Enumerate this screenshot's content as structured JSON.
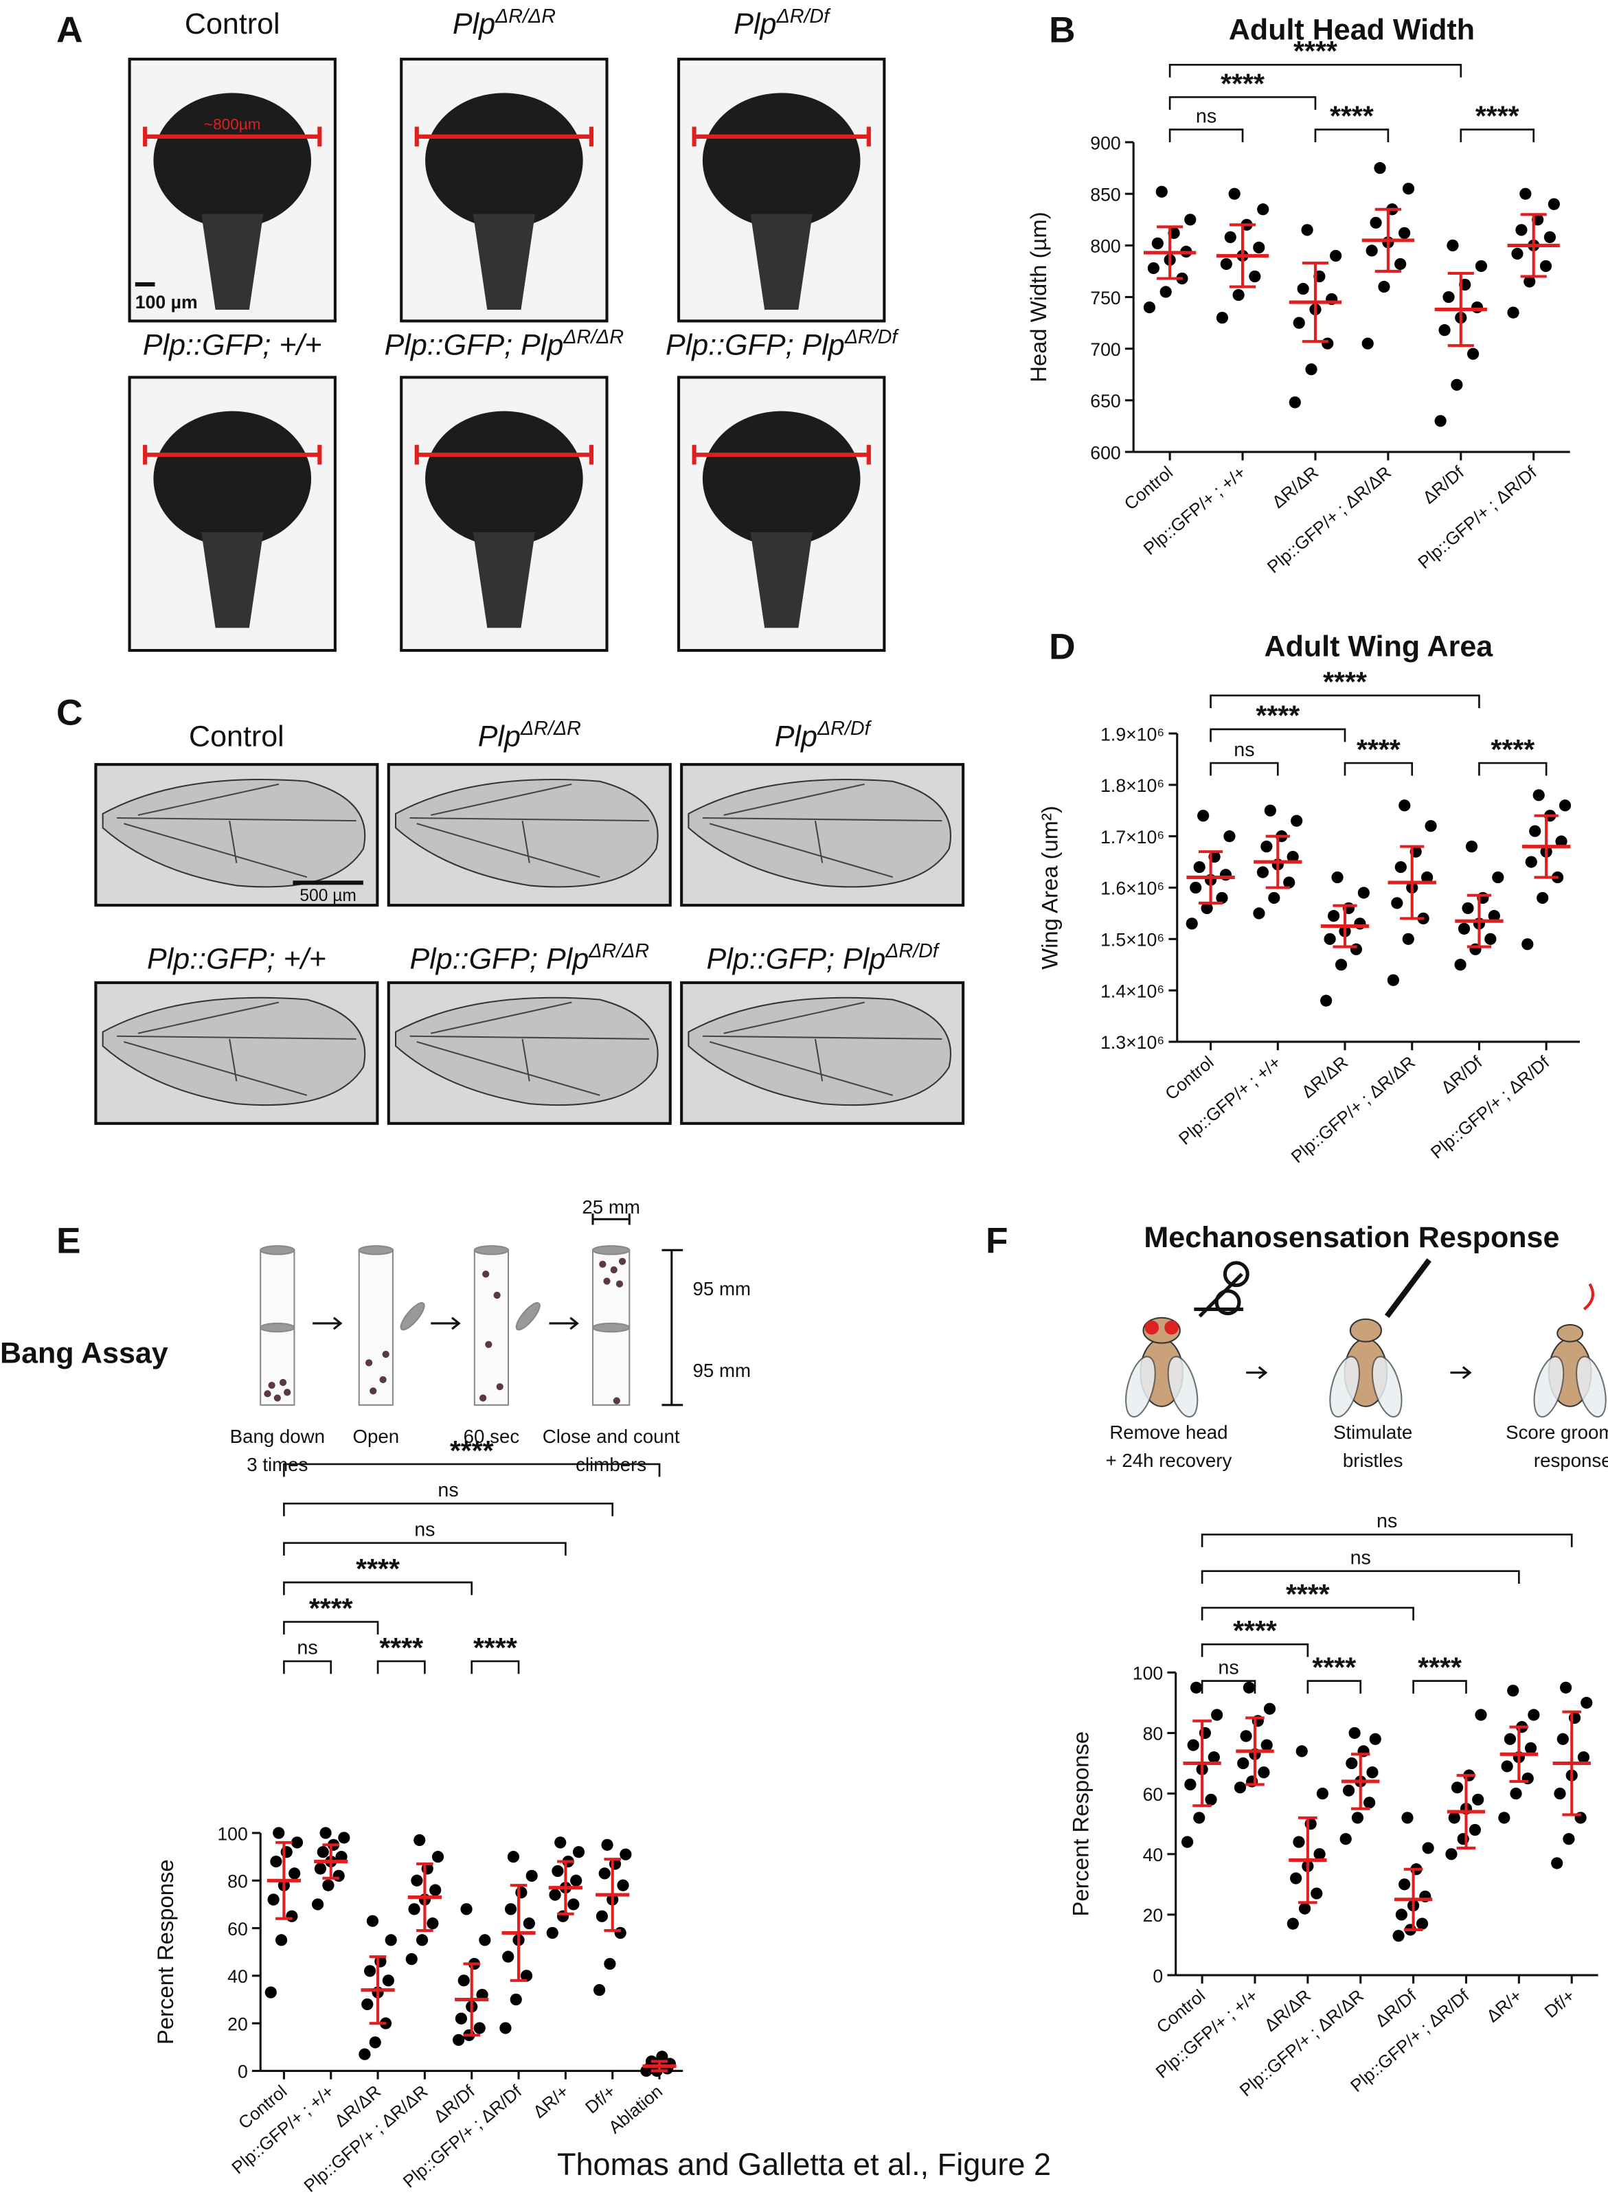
{
  "panel_a": {
    "label": "A",
    "captions": [
      {
        "text": "Control"
      },
      {
        "text": "Plp",
        "sup": "ΔR/ΔR"
      },
      {
        "text": "Plp",
        "sup": "ΔR/Df"
      },
      {
        "text": "Plp::GFP; +/+"
      },
      {
        "text": "Plp::GFP; Plp",
        "sup": "ΔR/ΔR"
      },
      {
        "text": "Plp::GFP; Plp",
        "sup": "ΔR/Df"
      }
    ],
    "measure_label": "~800µm",
    "scale_bar": "100 µm"
  },
  "panel_c": {
    "label": "C",
    "captions": [
      {
        "text": "Control"
      },
      {
        "text": "Plp",
        "sup": "ΔR/ΔR"
      },
      {
        "text": "Plp",
        "sup": "ΔR/Df"
      },
      {
        "text": "Plp::GFP; +/+"
      },
      {
        "text": "Plp::GFP; Plp",
        "sup": "ΔR/ΔR"
      },
      {
        "text": "Plp::GFP; Plp",
        "sup": "ΔR/Df"
      }
    ],
    "scale_bar": "500 µm"
  },
  "panel_e": {
    "label": "E",
    "title": "Bang Assay",
    "steps": [
      [
        "Bang down",
        "3 times"
      ],
      [
        "Open"
      ],
      [
        "60 sec"
      ],
      [
        "Close and count",
        "climbers"
      ]
    ],
    "width_label": "25 mm",
    "height_labels": [
      "95 mm",
      "95 mm"
    ]
  },
  "panel_f": {
    "label": "F",
    "title": "Mechanosensation Response",
    "steps": [
      [
        "Remove head",
        "+ 24h recovery"
      ],
      [
        "Stimulate",
        "bristles"
      ],
      [
        "Score grooming",
        "response"
      ]
    ]
  },
  "chart_data": [
    {
      "type": "dot",
      "panel_label": "B",
      "title": "Adult Head Width",
      "ylabel": "Head Width (µm)",
      "color": "#000000",
      "summary_color": "#e02020",
      "categories": [
        "Control",
        "Plp::GFP/+ ; +/+",
        "ΔR/ΔR",
        "Plp::GFP/+ ; ΔR/ΔR",
        "ΔR/Df",
        "Plp::GFP/+ ; ΔR/Df"
      ],
      "ylim": [
        600,
        900
      ],
      "yticks": [
        600,
        650,
        700,
        750,
        800,
        850,
        900
      ],
      "groups": [
        {
          "mean": 793,
          "sd": 25,
          "points": [
            740,
            755,
            768,
            778,
            786,
            794,
            802,
            812,
            825,
            852
          ]
        },
        {
          "mean": 790,
          "sd": 30,
          "points": [
            730,
            752,
            770,
            782,
            790,
            798,
            808,
            820,
            835,
            850
          ]
        },
        {
          "mean": 745,
          "sd": 38,
          "points": [
            648,
            680,
            705,
            725,
            738,
            748,
            758,
            770,
            790,
            815
          ]
        },
        {
          "mean": 805,
          "sd": 30,
          "points": [
            705,
            760,
            782,
            795,
            803,
            812,
            822,
            835,
            855,
            875
          ]
        },
        {
          "mean": 738,
          "sd": 35,
          "points": [
            630,
            665,
            695,
            718,
            730,
            740,
            750,
            762,
            780,
            800
          ]
        },
        {
          "mean": 800,
          "sd": 30,
          "points": [
            735,
            765,
            780,
            792,
            800,
            808,
            815,
            825,
            840,
            850
          ]
        }
      ],
      "comparisons": [
        {
          "from": 0,
          "to": 1,
          "label": "ns"
        },
        {
          "from": 2,
          "to": 3,
          "label": "****"
        },
        {
          "from": 4,
          "to": 5,
          "label": "****"
        },
        {
          "from": 0,
          "to": 2,
          "label": "****"
        },
        {
          "from": 0,
          "to": 4,
          "label": "****"
        }
      ]
    },
    {
      "type": "dot",
      "panel_label": "D",
      "title": "Adult Wing Area",
      "ylabel": "Wing Area (um²)",
      "color": "#000000",
      "summary_color": "#e02020",
      "categories": [
        "Control",
        "Plp::GFP/+ ; +/+",
        "ΔR/ΔR",
        "Plp::GFP/+ ; ΔR/ΔR",
        "ΔR/Df",
        "Plp::GFP/+ ; ΔR/Df"
      ],
      "ylim": [
        1300000,
        1900000
      ],
      "yticks": [
        {
          "value": 1300000,
          "label": "1.3×10⁶"
        },
        {
          "value": 1400000,
          "label": "1.4×10⁶"
        },
        {
          "value": 1500000,
          "label": "1.5×10⁶"
        },
        {
          "value": 1600000,
          "label": "1.6×10⁶"
        },
        {
          "value": 1700000,
          "label": "1.7×10⁶"
        },
        {
          "value": 1800000,
          "label": "1.8×10⁶"
        },
        {
          "value": 1900000,
          "label": "1.9×10⁶"
        }
      ],
      "groups": [
        {
          "mean": 1620000,
          "sd": 50000,
          "points": [
            1530000,
            1560000,
            1580000,
            1600000,
            1615000,
            1625000,
            1640000,
            1660000,
            1700000,
            1740000
          ]
        },
        {
          "mean": 1650000,
          "sd": 50000,
          "points": [
            1550000,
            1580000,
            1610000,
            1630000,
            1645000,
            1660000,
            1680000,
            1700000,
            1730000,
            1750000
          ]
        },
        {
          "mean": 1525000,
          "sd": 40000,
          "points": [
            1380000,
            1450000,
            1480000,
            1500000,
            1515000,
            1530000,
            1545000,
            1560000,
            1590000,
            1620000
          ]
        },
        {
          "mean": 1610000,
          "sd": 70000,
          "points": [
            1420000,
            1500000,
            1540000,
            1570000,
            1600000,
            1620000,
            1640000,
            1670000,
            1720000,
            1760000
          ]
        },
        {
          "mean": 1535000,
          "sd": 50000,
          "points": [
            1450000,
            1480000,
            1500000,
            1520000,
            1530000,
            1545000,
            1560000,
            1580000,
            1620000,
            1680000
          ]
        },
        {
          "mean": 1680000,
          "sd": 60000,
          "points": [
            1490000,
            1580000,
            1620000,
            1650000,
            1670000,
            1690000,
            1710000,
            1740000,
            1760000,
            1780000
          ]
        }
      ],
      "comparisons": [
        {
          "from": 0,
          "to": 1,
          "label": "ns"
        },
        {
          "from": 2,
          "to": 3,
          "label": "****"
        },
        {
          "from": 4,
          "to": 5,
          "label": "****"
        },
        {
          "from": 0,
          "to": 2,
          "label": "****"
        },
        {
          "from": 0,
          "to": 4,
          "label": "****"
        }
      ]
    },
    {
      "type": "dot",
      "ylabel": "Percent Response",
      "color": "#000000",
      "summary_color": "#e02020",
      "categories": [
        "Control",
        "Plp::GFP/+ ; +/+",
        "ΔR/ΔR",
        "Plp::GFP/+ ; ΔR/ΔR",
        "ΔR/Df",
        "Plp::GFP/+ ; ΔR/Df",
        "ΔR/+",
        "Df/+",
        "Ablation"
      ],
      "ylim": [
        0,
        100
      ],
      "yticks": [
        0,
        20,
        40,
        60,
        80,
        100
      ],
      "groups": [
        {
          "mean": 80,
          "sd": 16,
          "points": [
            33,
            55,
            65,
            72,
            78,
            83,
            88,
            92,
            96,
            100
          ]
        },
        {
          "mean": 88,
          "sd": 7,
          "points": [
            70,
            78,
            82,
            85,
            88,
            90,
            92,
            95,
            98,
            100
          ]
        },
        {
          "mean": 34,
          "sd": 14,
          "points": [
            7,
            12,
            20,
            28,
            33,
            38,
            42,
            46,
            55,
            63
          ]
        },
        {
          "mean": 73,
          "sd": 14,
          "points": [
            47,
            55,
            62,
            68,
            72,
            76,
            80,
            85,
            90,
            97
          ]
        },
        {
          "mean": 30,
          "sd": 15,
          "points": [
            13,
            15,
            18,
            22,
            27,
            32,
            38,
            45,
            55,
            68
          ]
        },
        {
          "mean": 58,
          "sd": 20,
          "points": [
            18,
            30,
            40,
            48,
            55,
            62,
            68,
            75,
            82,
            90
          ]
        },
        {
          "mean": 77,
          "sd": 11,
          "points": [
            58,
            65,
            70,
            74,
            77,
            80,
            84,
            88,
            92,
            96
          ]
        },
        {
          "mean": 74,
          "sd": 15,
          "points": [
            34,
            45,
            58,
            65,
            72,
            78,
            83,
            87,
            91,
            95
          ]
        },
        {
          "mean": 2,
          "sd": 2,
          "points": [
            0,
            0,
            1,
            1,
            2,
            3,
            4,
            6
          ]
        }
      ],
      "comparisons": [
        {
          "from": 0,
          "to": 1,
          "label": "ns"
        },
        {
          "from": 2,
          "to": 3,
          "label": "****"
        },
        {
          "from": 4,
          "to": 5,
          "label": "****"
        },
        {
          "from": 0,
          "to": 2,
          "label": "****"
        },
        {
          "from": 0,
          "to": 4,
          "label": "****"
        },
        {
          "from": 0,
          "to": 6,
          "label": "ns"
        },
        {
          "from": 0,
          "to": 7,
          "label": "ns"
        },
        {
          "from": 0,
          "to": 8,
          "label": "****"
        }
      ]
    },
    {
      "type": "dot",
      "ylabel": "Percent Response",
      "color": "#000000",
      "summary_color": "#e02020",
      "categories": [
        "Control",
        "Plp::GFP/+ ; +/+",
        "ΔR/ΔR",
        "Plp::GFP/+ ; ΔR/ΔR",
        "ΔR/Df",
        "Plp::GFP/+ ; ΔR/Df",
        "ΔR/+",
        "Df/+"
      ],
      "ylim": [
        0,
        100
      ],
      "yticks": [
        0,
        20,
        40,
        60,
        80,
        100
      ],
      "groups": [
        {
          "mean": 70,
          "sd": 14,
          "points": [
            44,
            52,
            58,
            63,
            68,
            72,
            76,
            80,
            86,
            95
          ]
        },
        {
          "mean": 74,
          "sd": 11,
          "points": [
            62,
            64,
            67,
            70,
            73,
            76,
            79,
            84,
            88,
            95
          ]
        },
        {
          "mean": 38,
          "sd": 14,
          "points": [
            17,
            22,
            27,
            32,
            36,
            40,
            44,
            50,
            60,
            74
          ]
        },
        {
          "mean": 64,
          "sd": 9,
          "points": [
            45,
            52,
            57,
            61,
            64,
            67,
            70,
            74,
            78,
            80
          ]
        },
        {
          "mean": 25,
          "sd": 10,
          "points": [
            13,
            15,
            17,
            20,
            23,
            26,
            30,
            35,
            42,
            52
          ]
        },
        {
          "mean": 54,
          "sd": 12,
          "points": [
            40,
            45,
            48,
            52,
            55,
            58,
            62,
            66,
            86
          ]
        },
        {
          "mean": 73,
          "sd": 9,
          "points": [
            52,
            60,
            65,
            69,
            72,
            75,
            78,
            82,
            86,
            94
          ]
        },
        {
          "mean": 70,
          "sd": 17,
          "points": [
            37,
            45,
            52,
            60,
            66,
            72,
            78,
            85,
            90,
            95
          ]
        }
      ],
      "comparisons": [
        {
          "from": 0,
          "to": 1,
          "label": "ns"
        },
        {
          "from": 2,
          "to": 3,
          "label": "****"
        },
        {
          "from": 4,
          "to": 5,
          "label": "****"
        },
        {
          "from": 0,
          "to": 2,
          "label": "****"
        },
        {
          "from": 0,
          "to": 4,
          "label": "****"
        },
        {
          "from": 0,
          "to": 6,
          "label": "ns"
        },
        {
          "from": 0,
          "to": 7,
          "label": "ns"
        }
      ]
    }
  ],
  "footer": "Thomas and Galletta et al., Figure 2"
}
